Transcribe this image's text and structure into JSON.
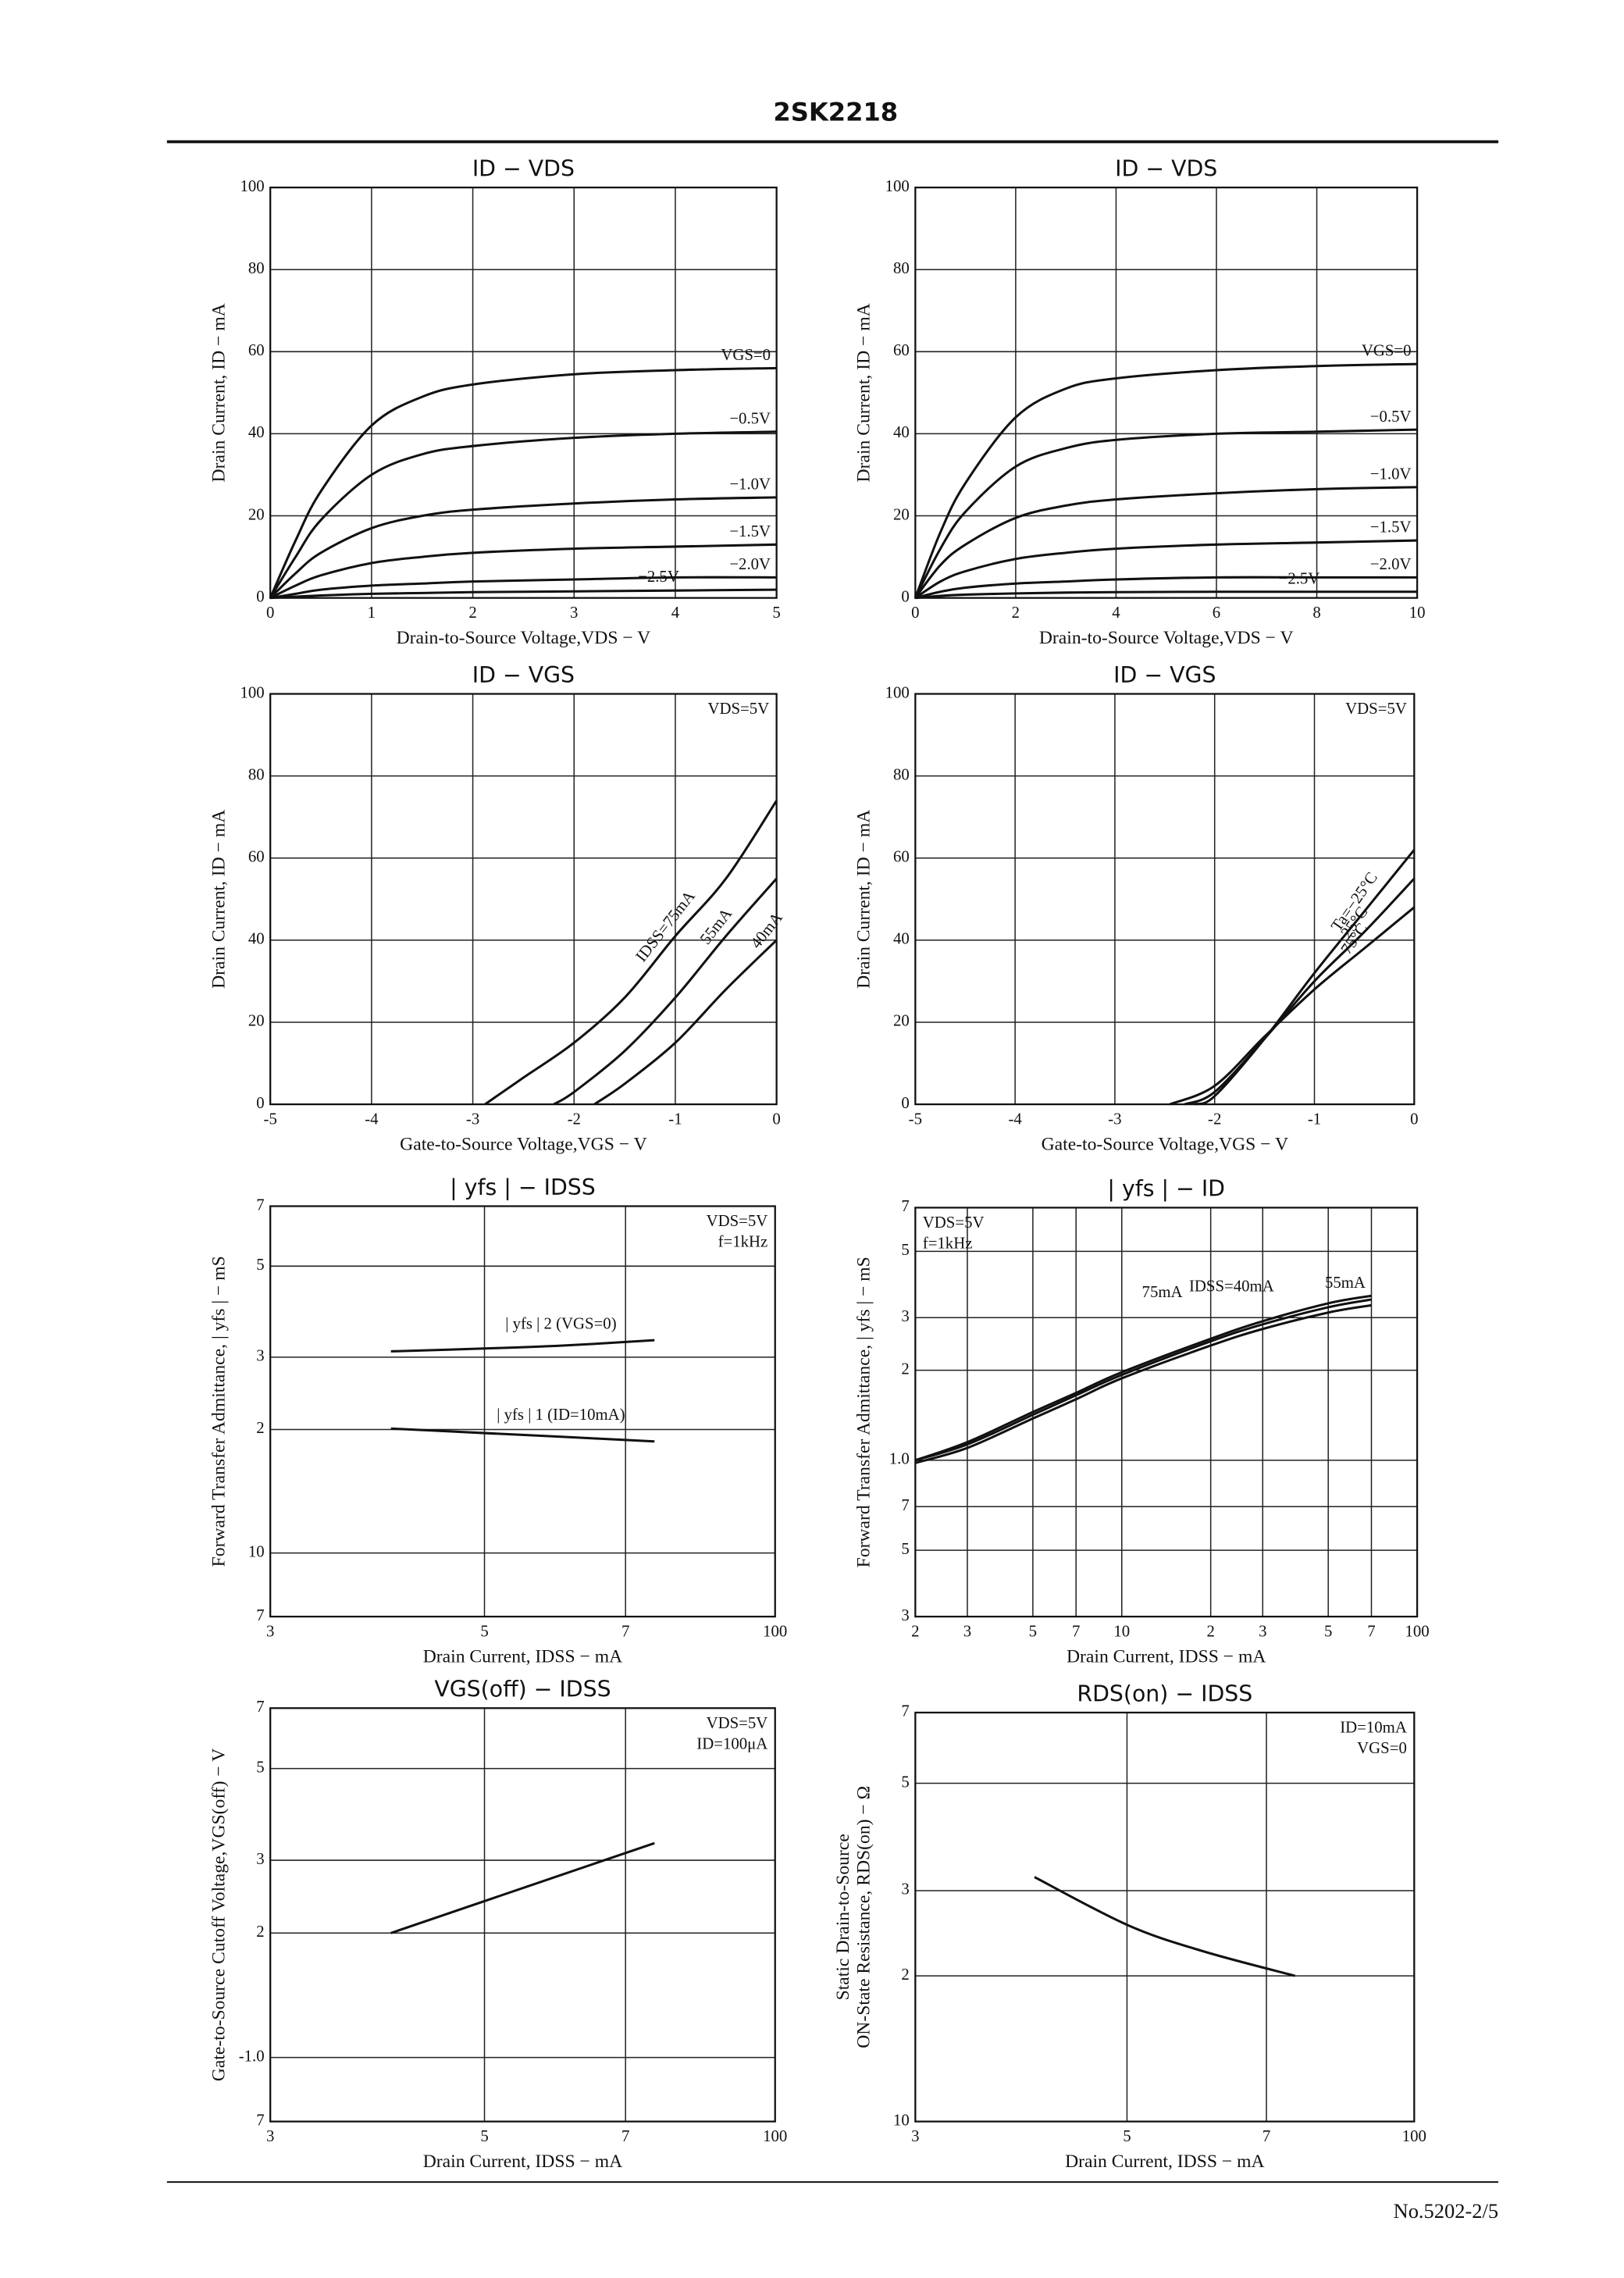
{
  "header": {
    "title": "2SK2218"
  },
  "footer": {
    "page": "No.5202-2/5"
  },
  "chart_data": [
    {
      "type": "line",
      "title": "ID − VDS",
      "xlabel": "Drain-to-Source Voltage,VDS − V",
      "ylabel": [
        "Drain Current, ID − mA"
      ],
      "xlim": [
        0,
        5
      ],
      "ylim": [
        0,
        100
      ],
      "xticks": [
        0,
        1,
        2,
        3,
        4,
        5
      ],
      "yticks": [
        0,
        20,
        40,
        60,
        80,
        100
      ],
      "grid": true,
      "x": [
        0,
        0.25,
        0.5,
        1,
        1.5,
        2,
        3,
        4,
        5
      ],
      "series": [
        {
          "name": "VGS=0",
          "color": "#111111",
          "values": [
            0,
            14,
            26,
            42,
            49,
            52,
            54.5,
            55.5,
            56
          ]
        },
        {
          "name": "−0.5V",
          "color": "#111111",
          "values": [
            0,
            10,
            19,
            30,
            35,
            37,
            39,
            40,
            40.5
          ]
        },
        {
          "name": "−1.0V",
          "color": "#111111",
          "values": [
            0,
            6,
            11,
            17,
            20,
            21.5,
            23,
            24,
            24.5
          ]
        },
        {
          "name": "−1.5V",
          "color": "#111111",
          "values": [
            0,
            3,
            5.5,
            8.5,
            10,
            11,
            12,
            12.5,
            13
          ]
        },
        {
          "name": "−2.0V",
          "color": "#111111",
          "values": [
            0,
            1,
            2,
            3,
            3.5,
            4,
            4.5,
            5,
            5
          ]
        },
        {
          "name": "−2.5V",
          "color": "#111111",
          "values": [
            0,
            0.3,
            0.6,
            1,
            1.2,
            1.4,
            1.6,
            1.8,
            2
          ]
        }
      ]
    },
    {
      "type": "line",
      "title": "ID − VDS",
      "xlabel": "Drain-to-Source Voltage,VDS − V",
      "ylabel": [
        "Drain Current, ID − mA"
      ],
      "xlim": [
        0,
        10
      ],
      "ylim": [
        0,
        100
      ],
      "xticks": [
        0,
        2,
        4,
        6,
        8,
        10
      ],
      "yticks": [
        0,
        20,
        40,
        60,
        80,
        100
      ],
      "grid": true,
      "x": [
        0,
        0.5,
        1,
        2,
        3,
        4,
        6,
        8,
        10
      ],
      "series": [
        {
          "name": "VGS=0",
          "color": "#111111",
          "values": [
            0,
            16,
            28,
            44,
            51,
            53.5,
            55.5,
            56.5,
            57
          ]
        },
        {
          "name": "−0.5V",
          "color": "#111111",
          "values": [
            0,
            12,
            21,
            32,
            36.5,
            38.5,
            40,
            40.5,
            41
          ]
        },
        {
          "name": "−1.0V",
          "color": "#111111",
          "values": [
            0,
            8,
            13,
            19.5,
            22.5,
            24,
            25.5,
            26.5,
            27
          ]
        },
        {
          "name": "−1.5V",
          "color": "#111111",
          "values": [
            0,
            4,
            6.5,
            9.5,
            11,
            12,
            13,
            13.5,
            14
          ]
        },
        {
          "name": "−2.0V",
          "color": "#111111",
          "values": [
            0,
            1.5,
            2.5,
            3.5,
            4,
            4.5,
            5,
            5,
            5
          ]
        },
        {
          "name": "−2.5V",
          "color": "#111111",
          "values": [
            0,
            0.5,
            0.8,
            1.1,
            1.3,
            1.4,
            1.5,
            1.5,
            1.5
          ]
        }
      ]
    },
    {
      "type": "line",
      "title": "ID − VGS",
      "xlabel": "Gate-to-Source Voltage,VGS − V",
      "ylabel": [
        "Drain Current, ID − mA"
      ],
      "xlim": [
        -5,
        0
      ],
      "ylim": [
        0,
        100
      ],
      "xticks": [
        -5,
        -4,
        -3,
        -2,
        -1,
        0
      ],
      "yticks": [
        0,
        20,
        40,
        60,
        80,
        100
      ],
      "grid": true,
      "annotations": [
        "VDS=5V"
      ],
      "series": [
        {
          "name": "IDSS=75mA",
          "color": "#111111",
          "x": [
            -2.88,
            -2.5,
            -2,
            -1.5,
            -1,
            -0.5,
            0
          ],
          "values": [
            0,
            6.5,
            15,
            26,
            41,
            55,
            74
          ]
        },
        {
          "name": "55mA",
          "color": "#111111",
          "x": [
            -2.2,
            -2,
            -1.5,
            -1,
            -0.5,
            0
          ],
          "values": [
            0,
            3,
            13,
            26,
            41,
            55
          ]
        },
        {
          "name": "40mA",
          "color": "#111111",
          "x": [
            -1.8,
            -1.5,
            -1,
            -0.5,
            0
          ],
          "values": [
            0,
            5,
            15,
            28,
            40
          ]
        }
      ]
    },
    {
      "type": "line",
      "title": "ID − VGS",
      "xlabel": "Gate-to-Source Voltage,VGS − V",
      "ylabel": [
        "Drain Current, ID − mA"
      ],
      "xlim": [
        -5,
        0
      ],
      "ylim": [
        0,
        100
      ],
      "xticks": [
        -5,
        -4,
        -3,
        -2,
        -1,
        0
      ],
      "yticks": [
        0,
        20,
        40,
        60,
        80,
        100
      ],
      "grid": true,
      "annotations": [
        "VDS=5V"
      ],
      "series": [
        {
          "name": "Ta=−25°C",
          "color": "#111111",
          "x": [
            -2.2,
            -2,
            -1.5,
            -1,
            -0.5,
            0
          ],
          "values": [
            0,
            2,
            16,
            32,
            47,
            62
          ]
        },
        {
          "name": "25°C",
          "color": "#111111",
          "x": [
            -2.3,
            -2,
            -1.5,
            -1,
            -0.5,
            0
          ],
          "values": [
            0,
            3,
            16,
            30,
            42,
            55
          ]
        },
        {
          "name": "75°C",
          "color": "#111111",
          "x": [
            -2.45,
            -2,
            -1.5,
            -1,
            -0.5,
            0
          ],
          "values": [
            0,
            4.5,
            16.5,
            28,
            38,
            48
          ]
        }
      ]
    },
    {
      "type": "line",
      "title": "| yfs | − IDSS",
      "xlabel": "Drain Current, IDSS − mA",
      "ylabel": [
        "Forward Transfer Admittance, | yfs | − mS"
      ],
      "xscale": "log",
      "yscale": "log",
      "xlim": [
        30,
        100
      ],
      "ylim": [
        7,
        70
      ],
      "xticks": [
        {
          "value": 30,
          "label": "3"
        },
        {
          "value": 50,
          "label": "5"
        },
        {
          "value": 70,
          "label": "7"
        },
        100
      ],
      "yticks": [
        {
          "value": 70,
          "label": "7"
        },
        {
          "value": 50,
          "label": "5"
        },
        {
          "value": 30,
          "label": "3"
        },
        {
          "value": 20,
          "label": "2"
        },
        10,
        {
          "value": 7,
          "label": "7"
        }
      ],
      "grid": true,
      "annotations": [
        "VDS=5V",
        "f=1kHz"
      ],
      "x": [
        40,
        50,
        60,
        75
      ],
      "series": [
        {
          "name": "| yfs | 2 (VGS=0)",
          "color": "#111111",
          "values": [
            31,
            31.5,
            32,
            33
          ]
        },
        {
          "name": "| yfs | 1 (ID=10mA)",
          "color": "#111111",
          "values": [
            20.1,
            19.6,
            19.2,
            18.7
          ]
        }
      ]
    },
    {
      "type": "line",
      "title": "| yfs | − ID",
      "xlabel": "Drain Current, IDSS − mA",
      "ylabel": [
        "Forward Transfer Admittance, | yfs | − mS"
      ],
      "xscale": "log",
      "yscale": "log",
      "xlim": [
        2,
        100
      ],
      "ylim": [
        0.3,
        7
      ],
      "xticks": [
        2,
        3,
        5,
        7,
        10,
        {
          "value": 20,
          "label": "2"
        },
        {
          "value": 30,
          "label": "3"
        },
        {
          "value": 50,
          "label": "5"
        },
        {
          "value": 70,
          "label": "7"
        },
        100
      ],
      "yticks": [
        7,
        5,
        3,
        2,
        {
          "value": 1,
          "label": "1.0"
        },
        {
          "value": 0.7,
          "label": "7"
        },
        {
          "value": 0.5,
          "label": "5"
        },
        {
          "value": 0.3,
          "label": "3"
        }
      ],
      "grid": true,
      "annotations": [
        "VDS=5V",
        "f=1kHz"
      ],
      "x": [
        2,
        3,
        5,
        7,
        10,
        20,
        30,
        50,
        70
      ],
      "series": [
        {
          "name": "55mA",
          "color": "#111111",
          "values": [
            1.0,
            1.15,
            1.45,
            1.68,
            1.97,
            2.55,
            2.92,
            3.35,
            3.55
          ]
        },
        {
          "name": "IDSS=40mA",
          "color": "#111111",
          "values": [
            1.0,
            1.13,
            1.42,
            1.65,
            1.93,
            2.5,
            2.85,
            3.25,
            3.45
          ]
        },
        {
          "name": "75mA",
          "color": "#111111",
          "values": [
            0.98,
            1.1,
            1.38,
            1.6,
            1.88,
            2.42,
            2.75,
            3.12,
            3.3
          ]
        }
      ]
    },
    {
      "type": "line",
      "title": "VGS(off) − IDSS",
      "xlabel": "Drain Current, IDSS − mA",
      "ylabel": [
        "Gate-to-Source Cutoff Voltage,VGS(off) − V"
      ],
      "xscale": "log",
      "yscale": "log",
      "xlim": [
        30,
        100
      ],
      "ylim": [
        0.7,
        7
      ],
      "xticks": [
        {
          "value": 30,
          "label": "3"
        },
        {
          "value": 50,
          "label": "5"
        },
        {
          "value": 70,
          "label": "7"
        },
        100
      ],
      "yticks": [
        7,
        5,
        3,
        2,
        {
          "value": 1,
          "label": "-1.0"
        },
        {
          "value": 0.7,
          "label": "7"
        }
      ],
      "grid": true,
      "annotations": [
        "VDS=5V",
        "ID=100μA"
      ],
      "x": [
        40,
        75
      ],
      "series": [
        {
          "color": "#111111",
          "values": [
            2.0,
            3.3
          ]
        }
      ]
    },
    {
      "type": "line",
      "title": "RDS(on) − IDSS",
      "xlabel": "Drain Current, IDSS − mA",
      "ylabel": [
        "Static Drain-to-Source",
        "ON-State Resistance, RDS(on) − Ω"
      ],
      "xscale": "log",
      "yscale": "log",
      "xlim": [
        30,
        100
      ],
      "ylim": [
        10,
        70
      ],
      "xticks": [
        {
          "value": 30,
          "label": "3"
        },
        {
          "value": 50,
          "label": "5"
        },
        {
          "value": 70,
          "label": "7"
        },
        100
      ],
      "yticks": [
        {
          "value": 70,
          "label": "7"
        },
        {
          "value": 50,
          "label": "5"
        },
        {
          "value": 30,
          "label": "3"
        },
        {
          "value": 20,
          "label": "2"
        },
        10
      ],
      "grid": true,
      "annotations": [
        "ID=10mA",
        "VGS=0"
      ],
      "x": [
        40,
        50,
        60,
        75
      ],
      "series": [
        {
          "color": "#111111",
          "values": [
            32,
            25.5,
            22.5,
            20
          ]
        }
      ]
    }
  ]
}
